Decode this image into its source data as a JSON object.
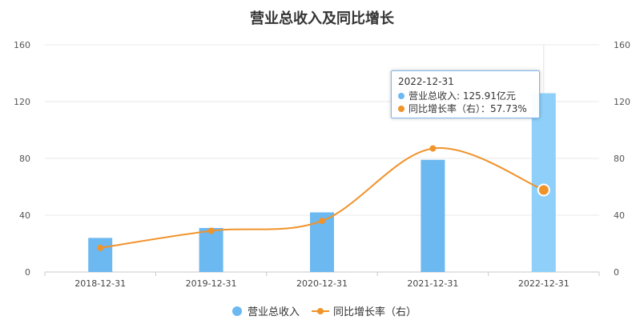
{
  "chart_data": {
    "type": "bar",
    "title": "营业总收入及同比增长",
    "categories": [
      "2018-12-31",
      "2019-12-31",
      "2020-12-31",
      "2021-12-31",
      "2022-12-31"
    ],
    "series": [
      {
        "name": "营业总收入",
        "type": "bar",
        "axis": "left",
        "color": "#6cb8f0",
        "highlight_color": "#8ed0fa",
        "values": [
          24,
          31,
          42,
          79,
          125.91
        ]
      },
      {
        "name": "同比增长率（右）",
        "type": "line",
        "axis": "right",
        "smooth": true,
        "color": "#f0932b",
        "values": [
          17,
          29,
          36,
          87,
          57.73
        ]
      }
    ],
    "y_left": {
      "min": 0,
      "max": 160,
      "ticks": [
        "0",
        "40",
        "80",
        "120",
        "160"
      ]
    },
    "y_right": {
      "min": 0,
      "max": 160,
      "ticks": [
        "0",
        "40",
        "80",
        "120",
        "160"
      ]
    },
    "grid": true,
    "legend_position": "bottom-center",
    "legend": [
      "营业总收入",
      "同比增长率（右）"
    ],
    "highlighted_index": 4,
    "tooltip": {
      "title": "2022-12-31",
      "rows": [
        {
          "label": "营业总收入",
          "value": "125.91亿元",
          "color": "#6cb8f0"
        },
        {
          "label": "同比增长率（右）",
          "value": "57.73%",
          "color": "#f0932b"
        }
      ]
    }
  }
}
